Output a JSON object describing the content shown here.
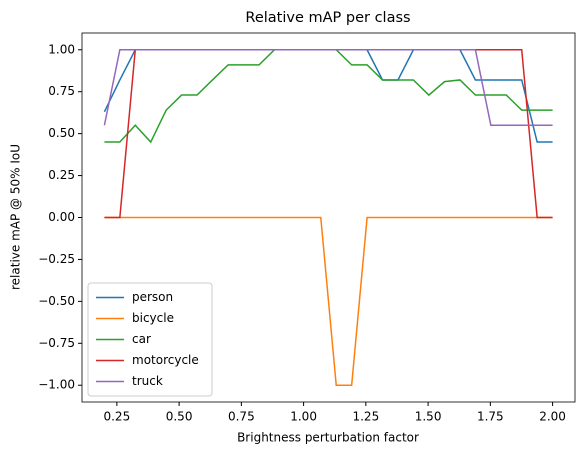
{
  "chart_data": {
    "type": "line",
    "title": "Relative mAP per class",
    "x_label": "Brightness perturbation factor",
    "y_label": "relative mAP @ 50% IoU",
    "x": [
      0.2,
      0.262,
      0.324,
      0.386,
      0.448,
      0.51,
      0.572,
      0.634,
      0.697,
      0.759,
      0.821,
      0.883,
      0.945,
      1.007,
      1.069,
      1.131,
      1.193,
      1.255,
      1.317,
      1.379,
      1.441,
      1.503,
      1.566,
      1.628,
      1.69,
      1.752,
      1.814,
      1.876,
      1.938,
      2.0
    ],
    "series": [
      {
        "name": "person",
        "color": "#1f77b4",
        "values": [
          0.63,
          0.82,
          1.0,
          1.0,
          1.0,
          1.0,
          1.0,
          1.0,
          1.0,
          1.0,
          1.0,
          1.0,
          1.0,
          1.0,
          1.0,
          1.0,
          1.0,
          1.0,
          0.82,
          0.82,
          1.0,
          1.0,
          1.0,
          1.0,
          0.82,
          0.82,
          0.82,
          0.82,
          0.45,
          0.45
        ]
      },
      {
        "name": "bicycle",
        "color": "#ff7f0e",
        "values": [
          0,
          0,
          0,
          0,
          0,
          0,
          0,
          0,
          0,
          0,
          0,
          0,
          0,
          0,
          0,
          -1,
          -1,
          0,
          0,
          0,
          0,
          0,
          0,
          0,
          0,
          0,
          0,
          0,
          0,
          0
        ]
      },
      {
        "name": "car",
        "color": "#2ca02c",
        "values": [
          0.45,
          0.45,
          0.55,
          0.45,
          0.64,
          0.73,
          0.73,
          0.82,
          0.91,
          0.91,
          0.91,
          1.0,
          1.0,
          1.0,
          1.0,
          1.0,
          0.91,
          0.91,
          0.82,
          0.82,
          0.82,
          0.73,
          0.81,
          0.82,
          0.73,
          0.73,
          0.73,
          0.64,
          0.64,
          0.64
        ]
      },
      {
        "name": "motorcycle",
        "color": "#d62728",
        "values": [
          0,
          0,
          1.0,
          1.0,
          1.0,
          1.0,
          1.0,
          1.0,
          1.0,
          1.0,
          1.0,
          1.0,
          1.0,
          1.0,
          1.0,
          1.0,
          1.0,
          1.0,
          1.0,
          1.0,
          1.0,
          1.0,
          1.0,
          1.0,
          1.0,
          1.0,
          1.0,
          1.0,
          0,
          0
        ]
      },
      {
        "name": "truck",
        "color": "#9467bd",
        "values": [
          0.55,
          1.0,
          1.0,
          1.0,
          1.0,
          1.0,
          1.0,
          1.0,
          1.0,
          1.0,
          1.0,
          1.0,
          1.0,
          1.0,
          1.0,
          1.0,
          1.0,
          1.0,
          1.0,
          1.0,
          1.0,
          1.0,
          1.0,
          1.0,
          1.0,
          0.55,
          0.55,
          0.55,
          0.55,
          0.55
        ]
      }
    ],
    "xlim": [
      0.11,
      2.09
    ],
    "ylim": [
      -1.1,
      1.1
    ],
    "xticks": [
      {
        "value": 0.25,
        "label": "0.25"
      },
      {
        "value": 0.5,
        "label": "0.50"
      },
      {
        "value": 0.75,
        "label": "0.75"
      },
      {
        "value": 1.0,
        "label": "1.00"
      },
      {
        "value": 1.25,
        "label": "1.25"
      },
      {
        "value": 1.5,
        "label": "1.50"
      },
      {
        "value": 1.75,
        "label": "1.75"
      },
      {
        "value": 2.0,
        "label": "2.00"
      }
    ],
    "yticks": [
      {
        "value": -1.0,
        "label": "−1.00"
      },
      {
        "value": -0.75,
        "label": "−0.75"
      },
      {
        "value": -0.5,
        "label": "−0.50"
      },
      {
        "value": -0.25,
        "label": "−0.25"
      },
      {
        "value": 0.0,
        "label": "0.00"
      },
      {
        "value": 0.25,
        "label": "0.25"
      },
      {
        "value": 0.5,
        "label": "0.50"
      },
      {
        "value": 0.75,
        "label": "0.75"
      },
      {
        "value": 1.0,
        "label": "1.00"
      }
    ],
    "legend": "lower left",
    "grid": false
  }
}
